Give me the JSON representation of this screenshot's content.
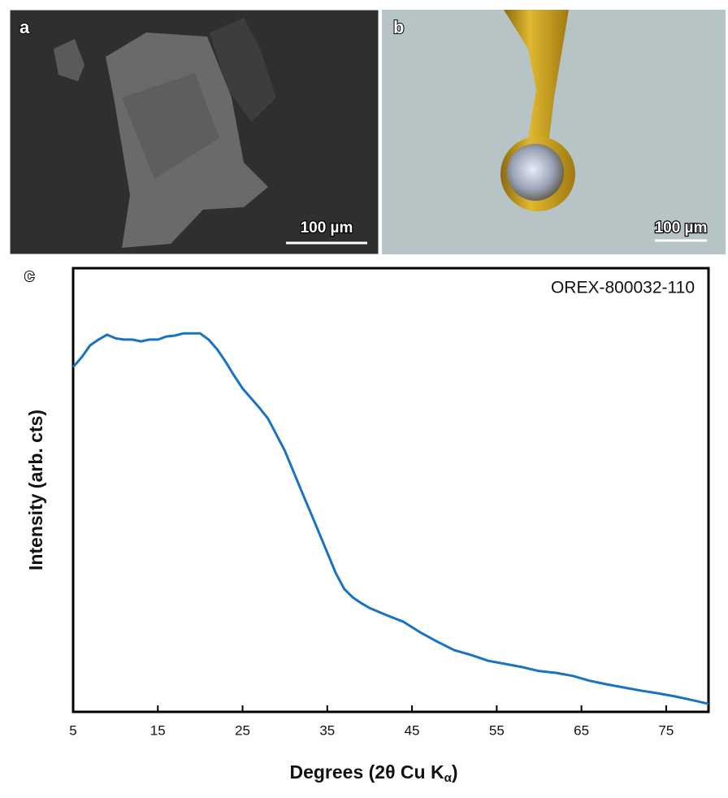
{
  "panels": [
    {
      "label": "a",
      "scale_bar": "100 µm"
    },
    {
      "label": "b",
      "scale_bar": "100 µm"
    },
    {
      "label": "c"
    }
  ],
  "chart_data": {
    "type": "line",
    "annotation": "OREX-800032-110",
    "ylabel": "Intensity (arb. cts)",
    "xlabel": "Degrees (2θ Cu K",
    "xlabel_subscript": "α",
    "xlabel_end": ")",
    "color": "#1a73c0",
    "x": [
      5,
      6,
      7,
      8,
      9,
      10,
      11,
      12,
      13,
      14,
      15,
      16,
      17,
      18,
      19,
      20,
      21,
      22,
      23,
      24,
      25,
      26,
      27,
      28,
      29,
      30,
      31,
      32,
      33,
      34,
      35,
      36,
      37,
      38,
      39,
      40,
      42,
      44,
      46,
      48,
      50,
      52,
      54,
      56,
      58,
      60,
      62,
      64,
      66,
      68,
      70,
      72,
      74,
      76,
      78,
      80
    ],
    "values": [
      77.7,
      79.9,
      82.6,
      83.9,
      85,
      84.2,
      83.9,
      83.9,
      83.5,
      83.9,
      83.9,
      84.6,
      84.8,
      85.3,
      85.3,
      85.3,
      83.9,
      81.7,
      78.9,
      75.8,
      72.9,
      70.7,
      68.5,
      66.1,
      62.5,
      58.8,
      54.2,
      49.6,
      45.1,
      40.5,
      35.9,
      31.3,
      27.7,
      25.8,
      24.5,
      23.4,
      21.8,
      20.3,
      17.9,
      15.8,
      13.9,
      12.8,
      11.5,
      10.8,
      10.1,
      9.2,
      8.8,
      8.1,
      7,
      6.2,
      5.5,
      4.8,
      4.2,
      3.5,
      2.7,
      1.8
    ],
    "xlim": [
      5,
      80
    ],
    "xticks": [
      5,
      15,
      25,
      35,
      45,
      55,
      65,
      75
    ],
    "ylim": [
      0,
      100
    ]
  }
}
